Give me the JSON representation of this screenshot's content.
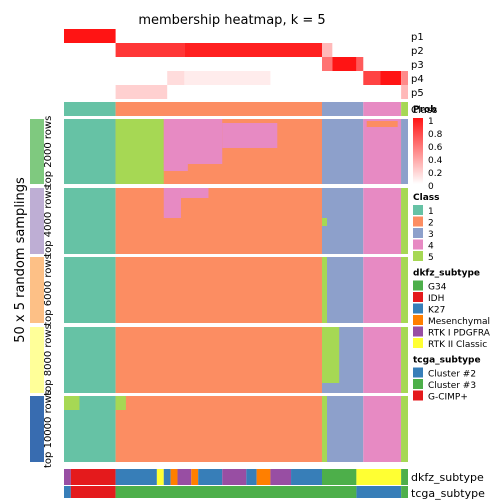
{
  "chart_data": {
    "type": "heatmap",
    "title": "membership heatmap, k = 5",
    "ylabel": "50 x 5 random samplings",
    "membership_rows": [
      "p1",
      "p2",
      "p3",
      "p4",
      "p5"
    ],
    "class_row_label": "Class",
    "row_groups": [
      "top 2000 rows",
      "top 4000 rows",
      "top 6000 rows",
      "top 8000 rows",
      "top 10000 rows"
    ],
    "row_group_colors": [
      "#7FC97F",
      "#BEAED4",
      "#FDC086",
      "#FFFF99",
      "#386CB0"
    ],
    "bottom_tracks": [
      "dkfz_subtype",
      "tcga_subtype"
    ],
    "colorbar": {
      "title": "Prob",
      "ticks": [
        "1",
        "0.8",
        "0.6",
        "0.4",
        "0.2",
        "0"
      ],
      "range": [
        0,
        1
      ]
    },
    "legends": [
      {
        "title": "Class",
        "items": [
          {
            "label": "1",
            "color": "#66C2A5"
          },
          {
            "label": "2",
            "color": "#FC8D62"
          },
          {
            "label": "3",
            "color": "#8DA0CB"
          },
          {
            "label": "4",
            "color": "#E78AC3"
          },
          {
            "label": "5",
            "color": "#A6D854"
          }
        ]
      },
      {
        "title": "dkfz_subtype",
        "items": [
          {
            "label": "G34",
            "color": "#4DAF4A"
          },
          {
            "label": "IDH",
            "color": "#E41A1C"
          },
          {
            "label": "K27",
            "color": "#377EB8"
          },
          {
            "label": "Mesenchymal",
            "color": "#FF7F00"
          },
          {
            "label": "RTK I PDGFRA",
            "color": "#984EA3"
          },
          {
            "label": "RTK II Classic",
            "color": "#FFFF33"
          }
        ]
      },
      {
        "title": "tcga_subtype",
        "items": [
          {
            "label": "Cluster #2",
            "color": "#377EB8"
          },
          {
            "label": "Cluster #3",
            "color": "#4DAF4A"
          },
          {
            "label": "G-CIMP+",
            "color": "#E41A1C"
          }
        ]
      }
    ],
    "column_segments_fraction": [
      {
        "class": "1",
        "from": 0.0,
        "to": 0.15
      },
      {
        "class": "2",
        "from": 0.15,
        "to": 0.75
      },
      {
        "class": "3",
        "from": 0.75,
        "to": 0.87
      },
      {
        "class": "4",
        "from": 0.87,
        "to": 0.98
      },
      {
        "class": "5",
        "from": 0.98,
        "to": 1.0
      }
    ]
  }
}
